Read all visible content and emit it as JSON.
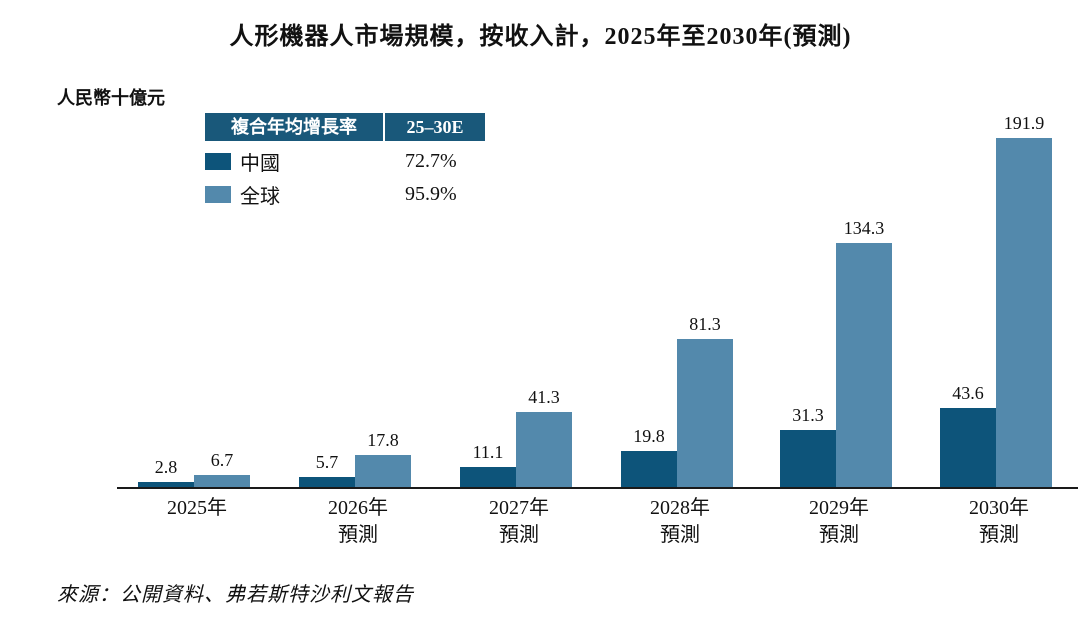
{
  "title": "人形機器人市場規模，按收入計，2025年至2030年(預測)",
  "unit_label": "人民幣十億元",
  "legend": {
    "header_metric": "複合年均增長率",
    "header_period": "25–30E",
    "rows": [
      {
        "label": "中國",
        "value": "72.7%",
        "color": "#0d547a"
      },
      {
        "label": "全球",
        "value": "95.9%",
        "color": "#5389ac"
      }
    ]
  },
  "source": "來源：公開資料、弗若斯特沙利文報告",
  "colors": {
    "china_bar": "#0d547a",
    "global_bar": "#5389ac",
    "legend_header_bg": "#19587a",
    "axis": "#1a1a1a"
  },
  "chart_data": {
    "type": "bar",
    "categories": [
      {
        "label": "2025年",
        "sublabel": ""
      },
      {
        "label": "2026年",
        "sublabel": "預測"
      },
      {
        "label": "2027年",
        "sublabel": "預測"
      },
      {
        "label": "2028年",
        "sublabel": "預測"
      },
      {
        "label": "2029年",
        "sublabel": "預測"
      },
      {
        "label": "2030年",
        "sublabel": "預測"
      }
    ],
    "series": [
      {
        "name": "中國",
        "color": "#0d547a",
        "values": [
          2.8,
          5.7,
          11.1,
          19.8,
          31.3,
          43.6
        ]
      },
      {
        "name": "全球",
        "color": "#5389ac",
        "values": [
          6.7,
          17.8,
          41.3,
          81.3,
          134.3,
          191.9
        ]
      }
    ],
    "title": "人形機器人市場規模，按收入計，2025年至2030年(預測)",
    "xlabel": "",
    "ylabel": "人民幣十億元",
    "ylim": [
      0,
      200
    ],
    "grid": false,
    "legend_position": "top-left",
    "data_labels": true
  }
}
